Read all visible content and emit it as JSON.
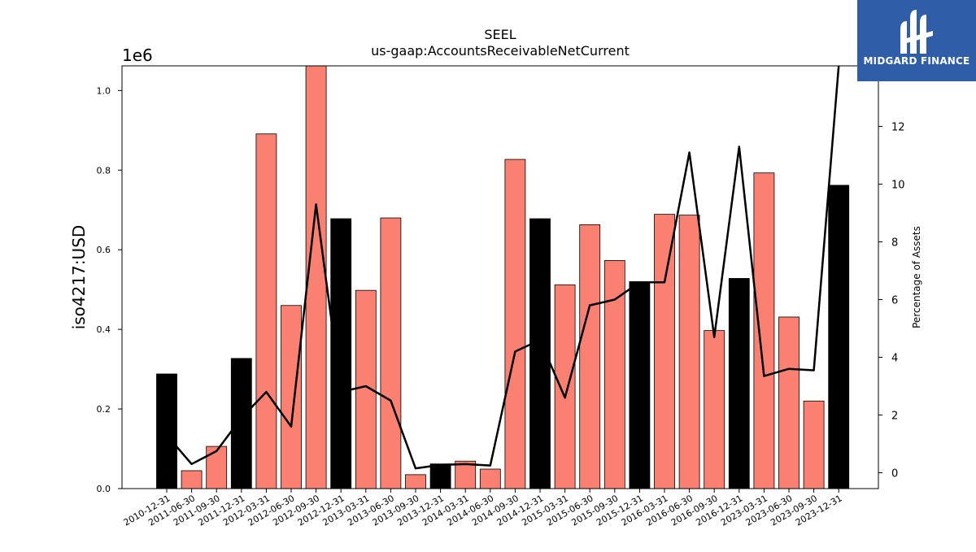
{
  "chart_data": {
    "type": "bar",
    "title": "SEEL",
    "subtitle": "us-gaap:AccountsReceivableNetCurrent",
    "ylabel": "iso4217:USD",
    "y_multiplier_label": "1e6",
    "y2label": "Percentage of Assets",
    "ylim": [
      0,
      1.062
    ],
    "y2lim": [
      -0.55,
      14.1
    ],
    "yticks": [
      "0.0",
      "0.2",
      "0.4",
      "0.6",
      "0.8",
      "1.0"
    ],
    "y2ticks": [
      "0",
      "2",
      "4",
      "6",
      "8",
      "10",
      "12"
    ],
    "categories": [
      "2010-12-31",
      "2011-06-30",
      "2011-09-30",
      "2011-12-31",
      "2012-03-31",
      "2012-06-30",
      "2012-09-30",
      "2012-12-31",
      "2013-03-31",
      "2013-06-30",
      "2013-09-30",
      "2013-12-31",
      "2014-03-31",
      "2014-06-30",
      "2014-09-30",
      "2014-12-31",
      "2015-03-31",
      "2015-06-30",
      "2015-09-30",
      "2015-12-31",
      "2016-03-31",
      "2016-06-30",
      "2016-09-30",
      "2016-12-31",
      "2023-03-31",
      "2023-06-30",
      "2023-09-30",
      "2023-12-31"
    ],
    "series": [
      {
        "values": [
          0.288,
          0.045,
          0.106,
          0.327,
          0.891,
          0.46,
          1.062,
          0.678,
          0.498,
          0.68,
          0.035,
          0.062,
          0.069,
          0.049,
          0.827,
          0.678,
          0.512,
          0.663,
          0.573,
          0.52,
          0.689,
          0.687,
          0.397,
          0.528,
          0.793,
          0.431,
          0.22,
          0.762
        ],
        "colors": [
          "#000000",
          "#fa8072",
          "#fa8072",
          "#000000",
          "#fa8072",
          "#fa8072",
          "#fa8072",
          "#000000",
          "#fa8072",
          "#fa8072",
          "#fa8072",
          "#000000",
          "#fa8072",
          "#fa8072",
          "#fa8072",
          "#000000",
          "#fa8072",
          "#fa8072",
          "#fa8072",
          "#000000",
          "#fa8072",
          "#fa8072",
          "#fa8072",
          "#000000",
          "#fa8072",
          "#fa8072",
          "#fa8072",
          "#000000"
        ]
      },
      {
        "type": "line",
        "axis": "right",
        "color": "#000000",
        "values": [
          1.3,
          0.3,
          0.75,
          1.9,
          2.8,
          1.6,
          9.3,
          2.8,
          3.0,
          2.5,
          0.15,
          0.27,
          0.3,
          0.25,
          4.2,
          4.6,
          2.6,
          5.8,
          6.0,
          6.6,
          6.6,
          11.1,
          4.7,
          11.3,
          3.35,
          3.6,
          3.55,
          14.1
        ]
      }
    ],
    "grid": false
  },
  "logo": {
    "text": "MIDGARD FINANCE",
    "background": "#2f5da8"
  }
}
